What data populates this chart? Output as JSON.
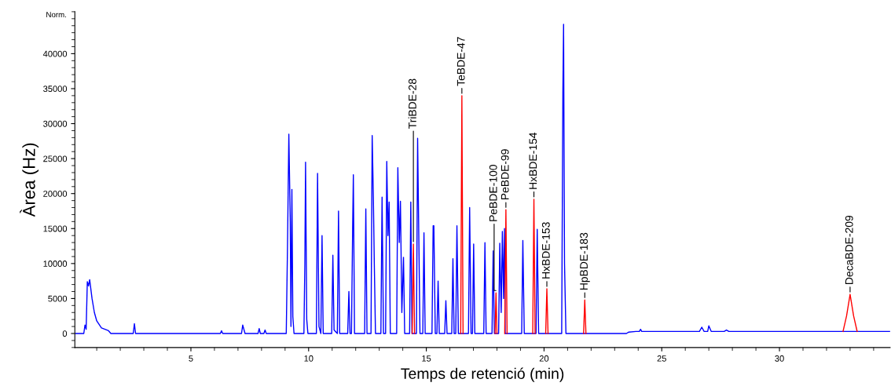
{
  "chart_data": {
    "type": "line",
    "xlabel": "Temps de retenció (min)",
    "ylabel": "Àrea (Hz)",
    "xlim": [
      0.07,
      34.7
    ],
    "ylim": [
      -2000,
      46000
    ],
    "xticks": [
      5,
      10,
      15,
      20,
      25,
      30
    ],
    "yticks": [
      0,
      5000,
      10000,
      15000,
      20000,
      25000,
      30000,
      35000,
      40000
    ],
    "grid": false,
    "marker": "none",
    "line_style": "solid",
    "series": [
      {
        "color": "#0000ff",
        "x": [
          0.1,
          0.45,
          0.5,
          0.55,
          0.6,
          0.65,
          0.7,
          0.8,
          0.9,
          1.0,
          1.2,
          1.5,
          1.6,
          2.55,
          2.6,
          2.65,
          6.25,
          6.3,
          6.35,
          7.15,
          7.2,
          7.3,
          7.85,
          7.9,
          7.95,
          8.1,
          8.15,
          8.2,
          9.05,
          9.1,
          9.16,
          9.22,
          9.25,
          9.29,
          9.33,
          9.38,
          9.8,
          9.84,
          9.87,
          9.92,
          9.97,
          10.33,
          10.38,
          10.44,
          10.52,
          10.57,
          10.62,
          10.98,
          11.03,
          11.08,
          11.22,
          11.27,
          11.32,
          11.66,
          11.71,
          11.76,
          11.82,
          11.87,
          11.9,
          11.95,
          12.38,
          12.43,
          12.48,
          12.65,
          12.7,
          12.75,
          12.79,
          12.84,
          13.07,
          13.12,
          13.18,
          13.27,
          13.32,
          13.37,
          13.42,
          13.47,
          13.74,
          13.79,
          13.85,
          13.9,
          13.96,
          14.03,
          14.08,
          14.29,
          14.34,
          14.39,
          14.58,
          14.63,
          14.68,
          14.73,
          14.85,
          14.9,
          14.95,
          15.24,
          15.29,
          15.32,
          15.38,
          15.45,
          15.5,
          15.55,
          15.78,
          15.83,
          15.88,
          16.08,
          16.13,
          16.18,
          16.25,
          16.3,
          16.36,
          16.79,
          16.84,
          16.9,
          16.96,
          17.01,
          17.06,
          17.44,
          17.49,
          17.54,
          17.79,
          17.84,
          17.89,
          18.07,
          18.12,
          18.18,
          18.23,
          18.28,
          18.32,
          18.35,
          19.05,
          19.1,
          19.16,
          19.66,
          19.71,
          19.77,
          20.75,
          20.8,
          20.83,
          20.87,
          20.93,
          23.5,
          23.6,
          23.9,
          24.05,
          24.1,
          24.15,
          25.5,
          26.6,
          26.7,
          26.8,
          26.95,
          27.0,
          27.1,
          27.65,
          27.75,
          27.85,
          34.7
        ],
        "values": [
          0,
          0,
          1200,
          600,
          7400,
          6800,
          7700,
          5000,
          3000,
          1800,
          800,
          400,
          0,
          0,
          1400,
          0,
          0,
          400,
          0,
          0,
          1200,
          0,
          0,
          700,
          0,
          0,
          500,
          0,
          0,
          11700,
          28500,
          16000,
          1000,
          20600,
          2400,
          0,
          0,
          10000,
          24500,
          2000,
          0,
          0,
          22900,
          1000,
          0,
          14000,
          0,
          0,
          11200,
          500,
          0,
          17500,
          0,
          0,
          6000,
          0,
          0,
          15000,
          22700,
          0,
          0,
          17800,
          0,
          0,
          28300,
          19500,
          10000,
          0,
          0,
          19500,
          0,
          0,
          24600,
          14000,
          18800,
          0,
          0,
          23700,
          13000,
          18900,
          3000,
          10900,
          0,
          0,
          18800,
          0,
          0,
          27900,
          14000,
          0,
          0,
          14400,
          0,
          0,
          15400,
          15400,
          0,
          0,
          7500,
          0,
          0,
          4700,
          0,
          0,
          10700,
          0,
          0,
          15400,
          0,
          0,
          18000,
          0,
          0,
          12800,
          0,
          0,
          13000,
          0,
          0,
          11800,
          0,
          0,
          12900,
          3000,
          14600,
          5000,
          15000,
          0,
          0,
          13300,
          0,
          0,
          14900,
          0,
          0,
          34500,
          44200,
          10000,
          0,
          0,
          200,
          300,
          300,
          600,
          300,
          300,
          300,
          900,
          300,
          300,
          1100,
          300,
          300,
          500,
          300,
          300
        ]
      },
      {
        "color": "#ff0000",
        "x": [
          14.4,
          14.45,
          14.5,
          15.0,
          16.46,
          16.51,
          16.56,
          17.5,
          17.92,
          17.96,
          18.0,
          18.2,
          18.33,
          18.38,
          18.43,
          19.0,
          19.52,
          19.57,
          19.62,
          19.9,
          20.07,
          20.12,
          20.17,
          21.0,
          21.68,
          21.73,
          21.78,
          27.0,
          32.7,
          32.85,
          33.0,
          33.15,
          33.3
        ],
        "values": [
          0,
          12800,
          0,
          null,
          0,
          34000,
          0,
          null,
          0,
          5800,
          0,
          null,
          0,
          17700,
          0,
          null,
          0,
          19200,
          0,
          null,
          0,
          6400,
          0,
          null,
          0,
          4800,
          0,
          null,
          300,
          2500,
          5600,
          2500,
          300
        ]
      }
    ],
    "annotations": [
      {
        "text": "TriBDE-28",
        "x": 14.45,
        "y": 12800
      },
      {
        "text": "TeBDE-47",
        "x": 16.51,
        "y": 34000
      },
      {
        "text": "PeBDE-100",
        "x": 17.96,
        "y": 5800
      },
      {
        "text": "PeBDE-99",
        "x": 18.38,
        "y": 17700
      },
      {
        "text": "HxBDE-154",
        "x": 19.57,
        "y": 19200
      },
      {
        "text": "HxBDE-153",
        "x": 20.12,
        "y": 6400
      },
      {
        "text": "HpBDE-183",
        "x": 21.73,
        "y": 4800
      },
      {
        "text": "DecaBDE-209",
        "x": 33.0,
        "y": 5600
      },
      "Norm."
    ]
  }
}
